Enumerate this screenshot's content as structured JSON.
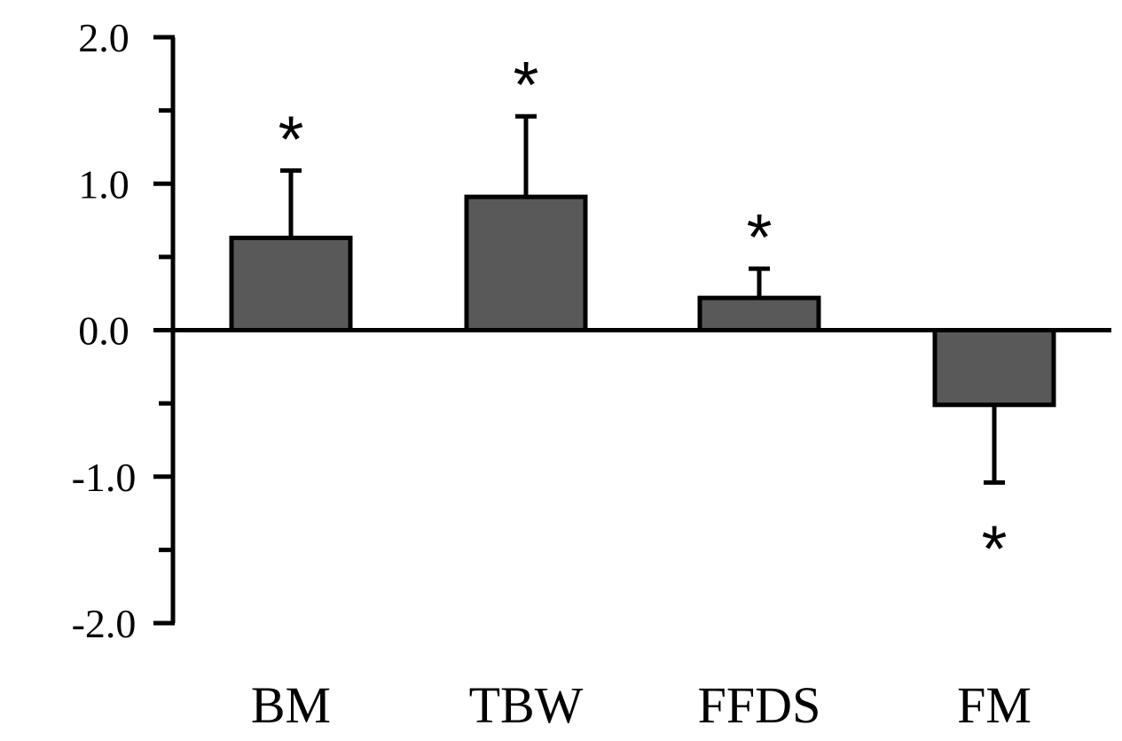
{
  "chart_data": {
    "type": "bar",
    "title": "",
    "xlabel": "",
    "ylabel": "",
    "categories": [
      "BM",
      "TBW",
      "FFDS",
      "FM"
    ],
    "values": [
      0.63,
      0.91,
      0.22,
      -0.51
    ],
    "error_bars": [
      0.46,
      0.55,
      0.2,
      0.53
    ],
    "significance": [
      "*",
      "*",
      "*",
      "*"
    ],
    "ylim": [
      -2.0,
      2.0
    ],
    "yticks": [
      2.0,
      1.0,
      0.0,
      -1.0,
      -2.0
    ],
    "ytick_labels": [
      "2.0",
      "1.0",
      "0.0",
      "-1.0",
      "-2.0"
    ],
    "minor_ticks": [
      1.5,
      0.5,
      -0.5,
      -1.5
    ],
    "grid": false,
    "legend": "none",
    "bar_color": "#595959",
    "edge_color": "#000000"
  }
}
